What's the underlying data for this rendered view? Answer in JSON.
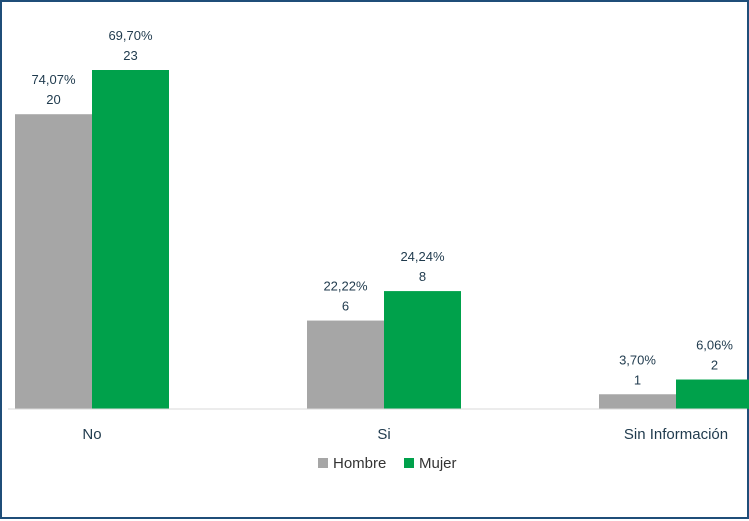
{
  "chart_data": {
    "type": "bar",
    "categories": [
      "No",
      "Si",
      "Sin Información"
    ],
    "series": [
      {
        "name": "Hombre",
        "color": "#a6a6a6",
        "values": [
          20,
          6,
          1
        ],
        "percent_labels": [
          "74,07%",
          "22,22%",
          "3,70%"
        ]
      },
      {
        "name": "Mujer",
        "color": "#00a14b",
        "values": [
          23,
          8,
          2
        ],
        "percent_labels": [
          "69,70%",
          "24,24%",
          "6,06%"
        ]
      }
    ],
    "title": "",
    "xlabel": "",
    "ylabel": "",
    "ylim": [
      0,
      23
    ],
    "grid": false,
    "legend_position": "bottom"
  }
}
